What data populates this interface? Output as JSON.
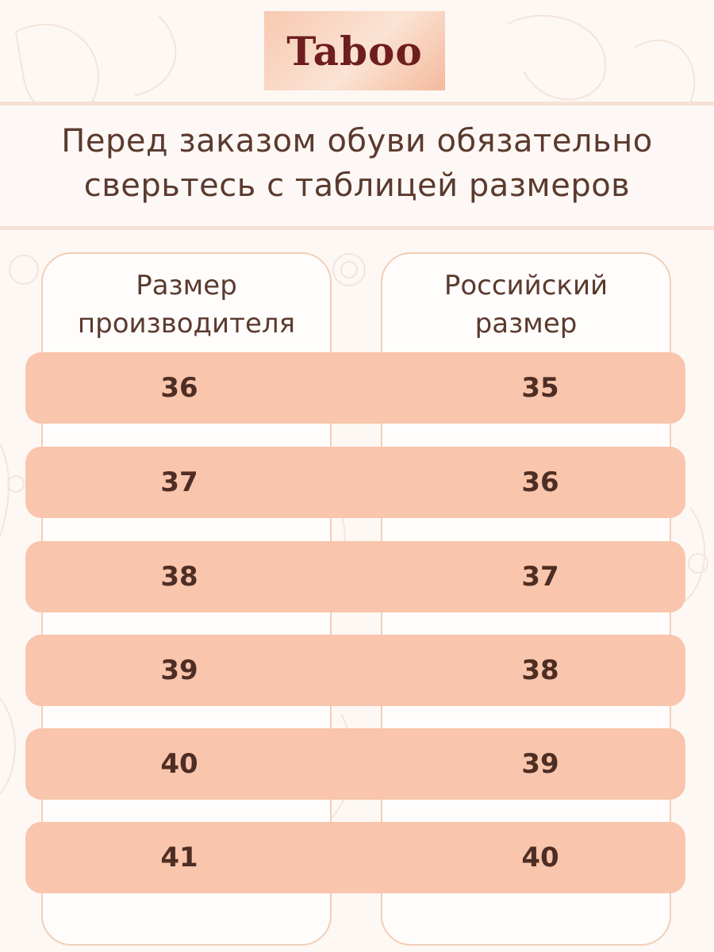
{
  "brand": {
    "name": "Taboo"
  },
  "headline": {
    "line1": "Перед заказом обуви обязательно",
    "line2": "сверьтесь с таблицей размеров"
  },
  "table": {
    "headers": {
      "manufacturer_line1": "Размер",
      "manufacturer_line2": "производителя",
      "russian_line1": "Российский",
      "russian_line2": "размер"
    },
    "rows": [
      {
        "manufacturer": "36",
        "russian": "35"
      },
      {
        "manufacturer": "37",
        "russian": "36"
      },
      {
        "manufacturer": "38",
        "russian": "37"
      },
      {
        "manufacturer": "39",
        "russian": "38"
      },
      {
        "manufacturer": "40",
        "russian": "39"
      },
      {
        "manufacturer": "41",
        "russian": "40"
      }
    ]
  },
  "colors": {
    "accent": "#f9c5ac",
    "text": "#5b3a2e",
    "brand": "#6e1e1e"
  }
}
